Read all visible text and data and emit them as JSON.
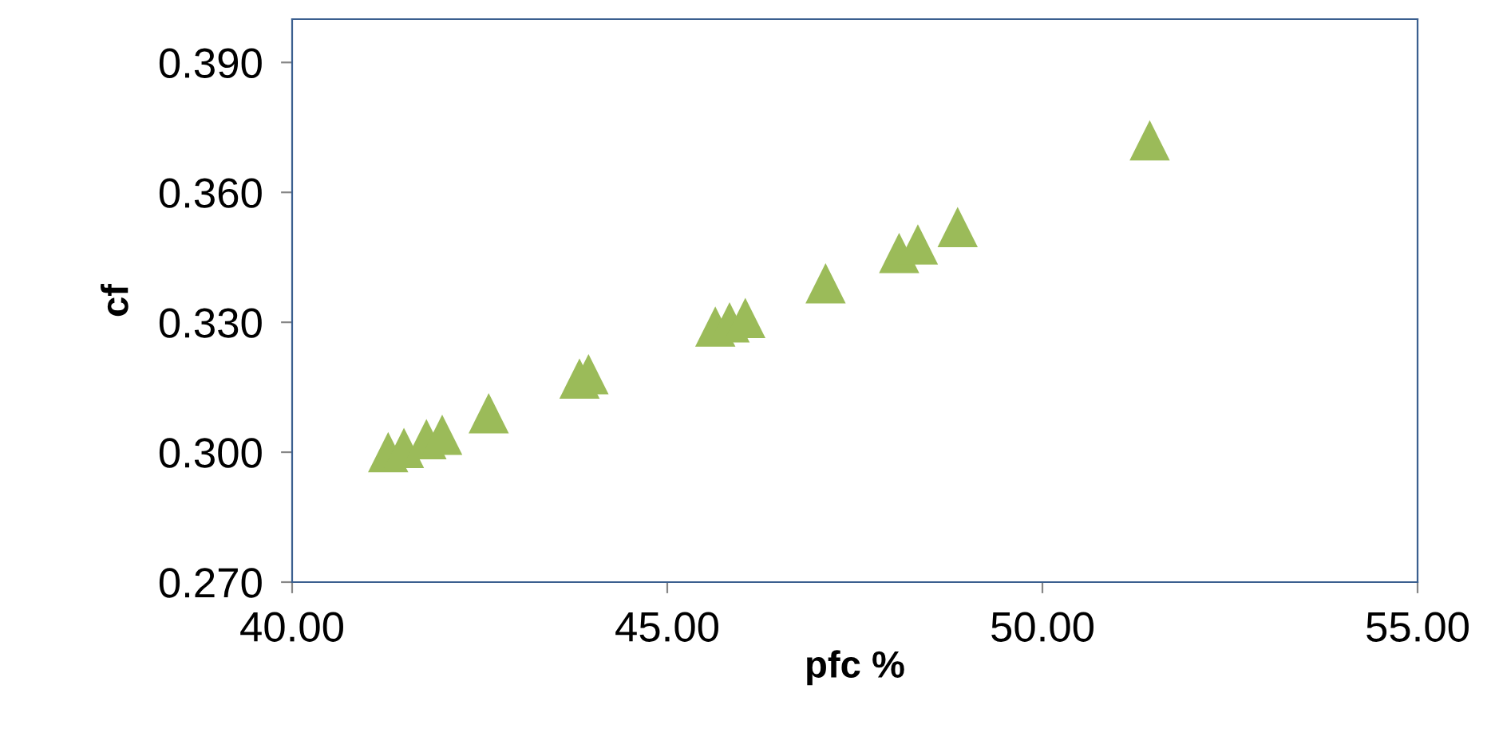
{
  "chart_data": {
    "type": "scatter",
    "xlabel": "pfc %",
    "ylabel": "cf",
    "x": [
      41.28,
      41.49,
      41.79,
      42.0,
      42.62,
      43.83,
      43.95,
      45.64,
      45.83,
      46.04,
      47.11,
      48.09,
      48.34,
      48.87,
      51.43
    ],
    "values": [
      0.3,
      0.301,
      0.303,
      0.304,
      0.309,
      0.317,
      0.318,
      0.329,
      0.33,
      0.331,
      0.339,
      0.346,
      0.348,
      0.352,
      0.372
    ],
    "color": "#9bbb59",
    "marker": "triangle",
    "grid": false,
    "legend": false,
    "xlim": [
      40,
      55
    ],
    "xticks": [
      {
        "value": 40,
        "label": "40.00"
      },
      {
        "value": 45,
        "label": "45.00"
      },
      {
        "value": 50,
        "label": "50.00"
      },
      {
        "value": 55,
        "label": "55.00"
      }
    ],
    "ylim": [
      0.27,
      0.4
    ],
    "yticks": [
      {
        "value": 0.27,
        "label": "0.270"
      },
      {
        "value": 0.3,
        "label": "0.300"
      },
      {
        "value": 0.33,
        "label": "0.330"
      },
      {
        "value": 0.36,
        "label": "0.360"
      },
      {
        "value": 0.39,
        "label": "0.390"
      }
    ]
  }
}
